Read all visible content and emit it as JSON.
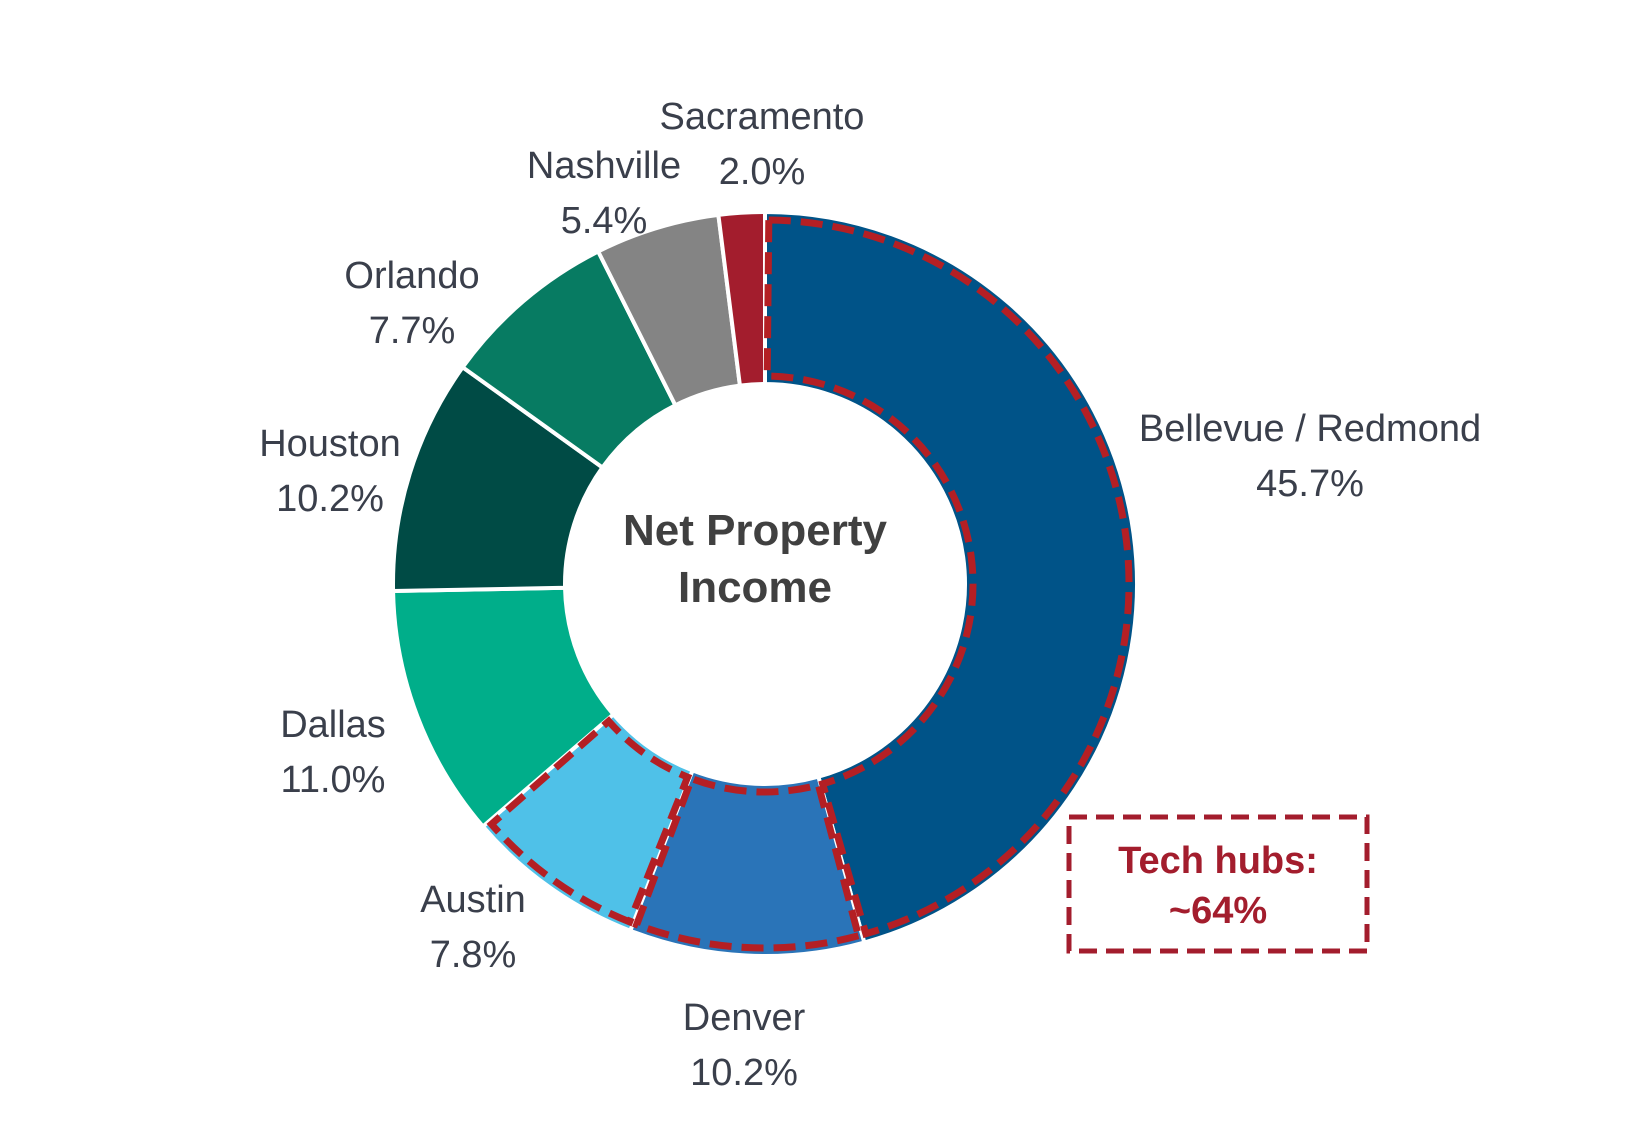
{
  "chart_data": {
    "type": "pie",
    "variant": "donut",
    "center_title_lines": [
      "Net Property",
      "Income"
    ],
    "slices": [
      {
        "name": "Bellevue / Redmond",
        "value": 45.7,
        "label": "45.7%",
        "color": "#005388",
        "highlighted": true
      },
      {
        "name": "Denver",
        "value": 10.2,
        "label": "10.2%",
        "color": "#2a74b8",
        "highlighted": true
      },
      {
        "name": "Austin",
        "value": 7.8,
        "label": "7.8%",
        "color": "#4fc1e8",
        "highlighted": true
      },
      {
        "name": "Dallas",
        "value": 11.0,
        "label": "11.0%",
        "color": "#00ae8a",
        "highlighted": false
      },
      {
        "name": "Houston",
        "value": 10.2,
        "label": "10.2%",
        "color": "#004b45",
        "highlighted": false
      },
      {
        "name": "Orlando",
        "value": 7.7,
        "label": "7.7%",
        "color": "#077b62",
        "highlighted": false
      },
      {
        "name": "Nashville",
        "value": 5.4,
        "label": "5.4%",
        "color": "#848484",
        "highlighted": false
      },
      {
        "name": "Sacramento",
        "value": 2.0,
        "label": "2.0%",
        "color": "#a31d2d",
        "highlighted": false
      }
    ],
    "callout": {
      "lines": [
        "Tech hubs:",
        "~64%"
      ],
      "value_percent": 64,
      "color": "#a31d2d",
      "border_style": "dashed"
    },
    "label_color": "#3a3f4b",
    "highlight_color": "#b41f24"
  }
}
